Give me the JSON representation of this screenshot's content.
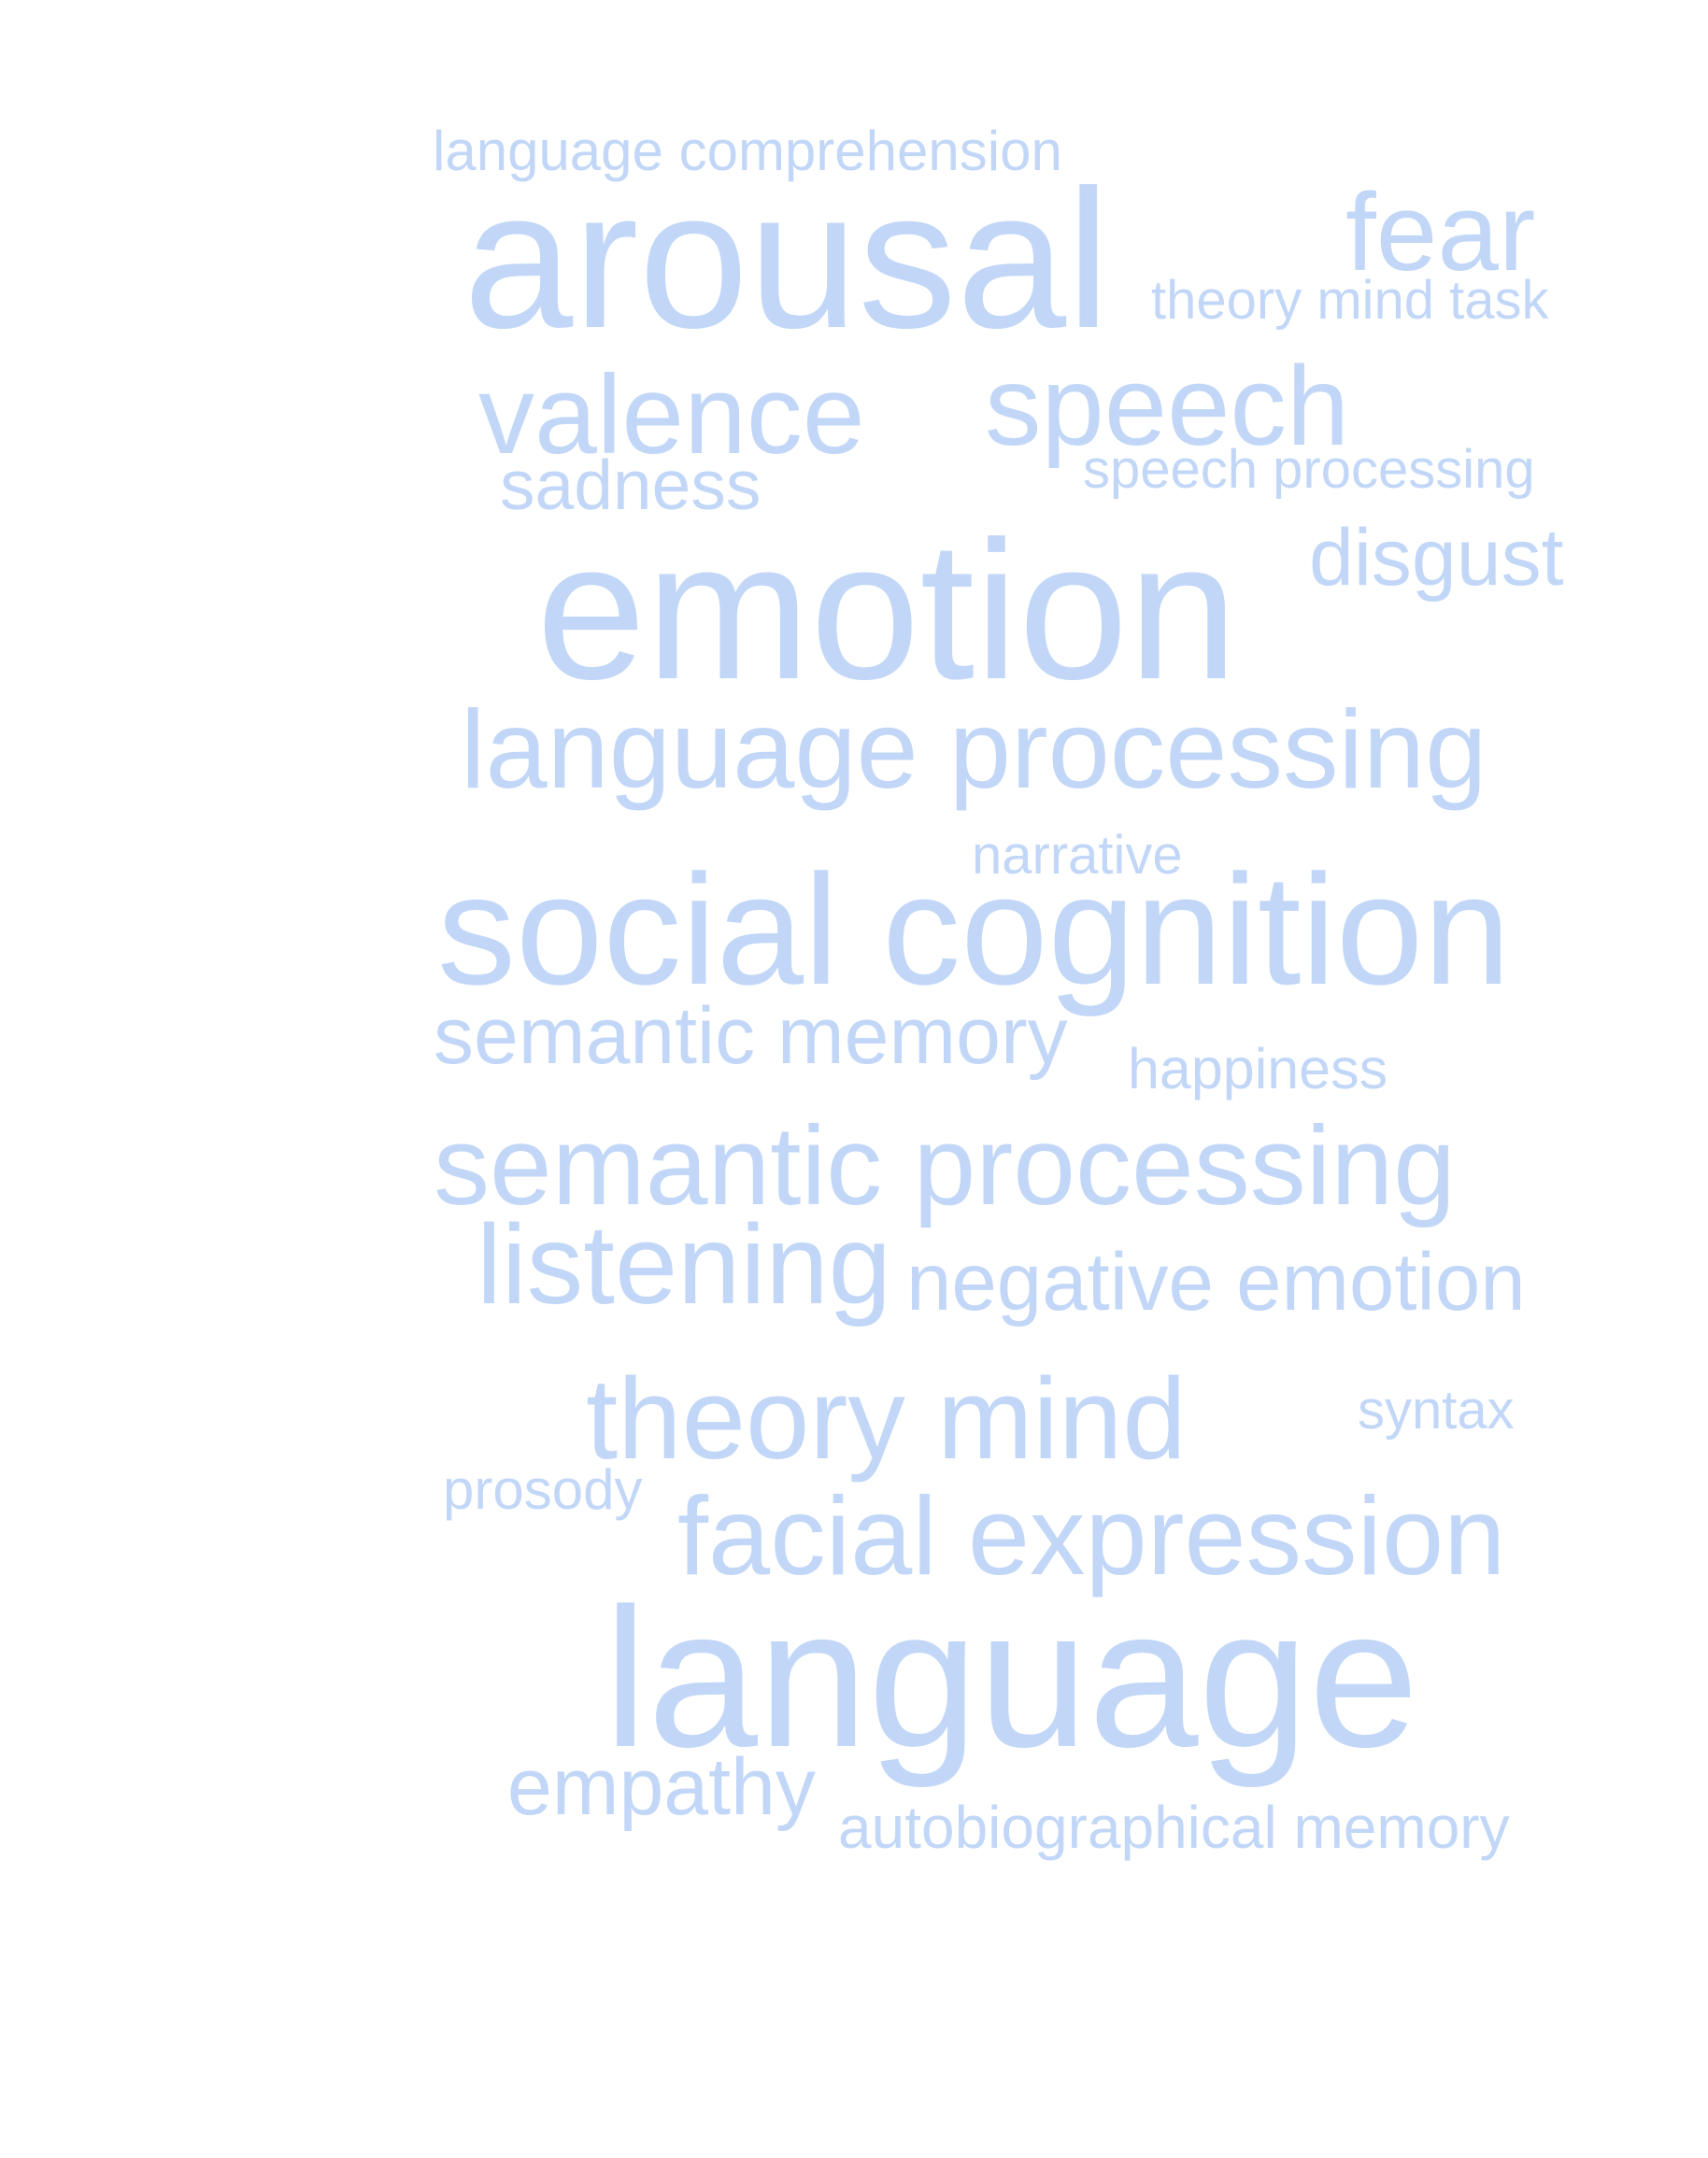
{
  "word_color": "#c2d7f7",
  "background": "#ffffff",
  "words": [
    {
      "key": "language-comprehension",
      "text": "language comprehension"
    },
    {
      "key": "arousal",
      "text": "arousal"
    },
    {
      "key": "fear",
      "text": "fear"
    },
    {
      "key": "theory-mind-task",
      "text": "theory mind task"
    },
    {
      "key": "valence",
      "text": "valence"
    },
    {
      "key": "speech",
      "text": "speech"
    },
    {
      "key": "sadness",
      "text": "sadness"
    },
    {
      "key": "speech-processing",
      "text": "speech processing"
    },
    {
      "key": "disgust",
      "text": "disgust"
    },
    {
      "key": "emotion",
      "text": "emotion"
    },
    {
      "key": "language-processing",
      "text": "language processing"
    },
    {
      "key": "narrative",
      "text": "narrative"
    },
    {
      "key": "social-cognition",
      "text": "social cognition"
    },
    {
      "key": "semantic-memory",
      "text": "semantic memory"
    },
    {
      "key": "happiness",
      "text": "happiness"
    },
    {
      "key": "semantic-processing",
      "text": "semantic processing"
    },
    {
      "key": "listening",
      "text": "listening"
    },
    {
      "key": "negative-emotion",
      "text": "negative emotion"
    },
    {
      "key": "theory-mind",
      "text": "theory mind"
    },
    {
      "key": "syntax",
      "text": "syntax"
    },
    {
      "key": "prosody",
      "text": "prosody"
    },
    {
      "key": "facial-expression",
      "text": "facial expression"
    },
    {
      "key": "language",
      "text": "language"
    },
    {
      "key": "empathy",
      "text": "empathy"
    },
    {
      "key": "autobiographical-memory",
      "text": "autobiographical memory"
    }
  ]
}
